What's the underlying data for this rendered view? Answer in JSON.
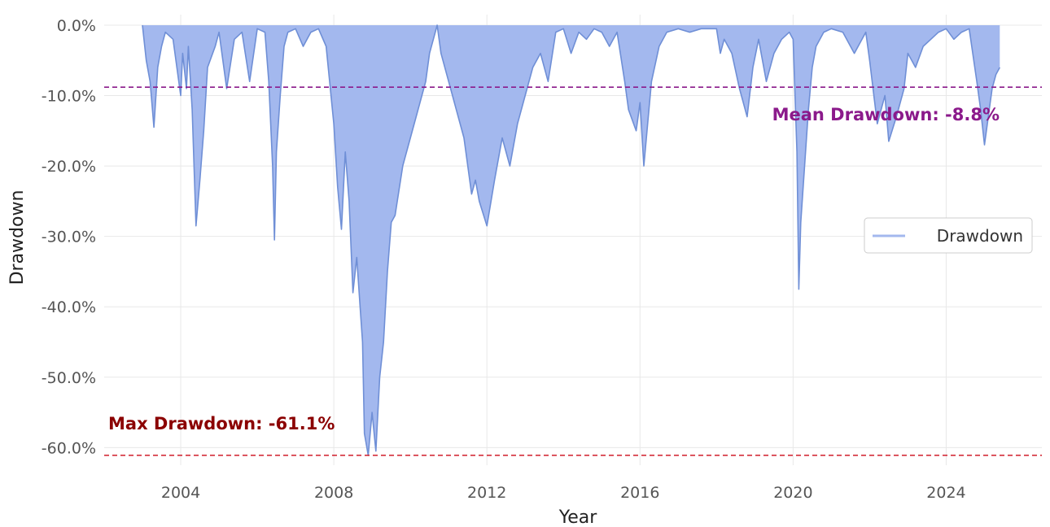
{
  "chart_data": {
    "type": "area",
    "title": "",
    "xlabel": "Year",
    "ylabel": "Drawdown",
    "xlim": [
      2002.0,
      2026.5
    ],
    "ylim": [
      -62.5,
      1.5
    ],
    "x_ticks": [
      2004,
      2008,
      2012,
      2016,
      2020,
      2024
    ],
    "x_tick_labels": [
      "2004",
      "2008",
      "2012",
      "2016",
      "2020",
      "2024"
    ],
    "y_ticks": [
      0,
      -10,
      -20,
      -30,
      -40,
      -50,
      -60
    ],
    "y_tick_labels": [
      "0.0%",
      "-10.0%",
      "-20.0%",
      "-30.0%",
      "-40.0%",
      "-50.0%",
      "-60.0%"
    ],
    "grid": true,
    "legend": {
      "position": "right",
      "entries": [
        "Drawdown"
      ]
    },
    "series": [
      {
        "name": "Drawdown",
        "color": "#6f8fd6",
        "fill": "#a3b8ee",
        "x": [
          2003.0,
          2003.1,
          2003.2,
          2003.3,
          2003.4,
          2003.5,
          2003.6,
          2003.8,
          2004.0,
          2004.05,
          2004.15,
          2004.2,
          2004.3,
          2004.4,
          2004.5,
          2004.6,
          2004.7,
          2004.9,
          2005.0,
          2005.2,
          2005.4,
          2005.6,
          2005.8,
          2006.0,
          2006.2,
          2006.3,
          2006.4,
          2006.45,
          2006.5,
          2006.6,
          2006.7,
          2006.8,
          2007.0,
          2007.2,
          2007.4,
          2007.6,
          2007.8,
          2008.0,
          2008.1,
          2008.2,
          2008.3,
          2008.4,
          2008.5,
          2008.6,
          2008.7,
          2008.75,
          2008.8,
          2008.9,
          2009.0,
          2009.1,
          2009.2,
          2009.3,
          2009.4,
          2009.5,
          2009.6,
          2009.8,
          2010.0,
          2010.2,
          2010.4,
          2010.5,
          2010.6,
          2010.7,
          2010.8,
          2011.0,
          2011.2,
          2011.4,
          2011.6,
          2011.7,
          2011.8,
          2012.0,
          2012.2,
          2012.4,
          2012.6,
          2012.8,
          2013.0,
          2013.2,
          2013.4,
          2013.6,
          2013.8,
          2014.0,
          2014.2,
          2014.4,
          2014.6,
          2014.8,
          2015.0,
          2015.2,
          2015.4,
          2015.6,
          2015.7,
          2015.9,
          2016.0,
          2016.1,
          2016.3,
          2016.5,
          2016.7,
          2017.0,
          2017.3,
          2017.6,
          2018.0,
          2018.1,
          2018.2,
          2018.4,
          2018.6,
          2018.8,
          2018.95,
          2019.1,
          2019.3,
          2019.5,
          2019.7,
          2019.9,
          2020.0,
          2020.1,
          2020.15,
          2020.2,
          2020.3,
          2020.4,
          2020.5,
          2020.6,
          2020.8,
          2021.0,
          2021.3,
          2021.6,
          2021.9,
          2022.0,
          2022.2,
          2022.4,
          2022.5,
          2022.7,
          2022.9,
          2023.0,
          2023.2,
          2023.4,
          2023.6,
          2023.8,
          2024.0,
          2024.2,
          2024.4,
          2024.6,
          2024.8,
          2024.9,
          2025.0,
          2025.1,
          2025.2,
          2025.3,
          2025.4
        ],
        "values": [
          0.0,
          -5.0,
          -8.0,
          -14.5,
          -6.0,
          -3.0,
          -1.0,
          -2.0,
          -10.0,
          -4.0,
          -9.0,
          -3.0,
          -12.0,
          -28.5,
          -22.0,
          -15.0,
          -6.0,
          -3.0,
          -1.0,
          -9.0,
          -2.0,
          -1.0,
          -8.0,
          -0.5,
          -1.0,
          -8.0,
          -20.0,
          -30.5,
          -18.0,
          -10.0,
          -3.0,
          -1.0,
          -0.5,
          -3.0,
          -1.0,
          -0.5,
          -3.0,
          -14.0,
          -23.0,
          -29.0,
          -18.0,
          -25.0,
          -38.0,
          -33.0,
          -41.0,
          -45.0,
          -58.0,
          -61.1,
          -55.0,
          -60.5,
          -50.0,
          -45.0,
          -35.0,
          -28.0,
          -27.0,
          -20.0,
          -16.0,
          -12.0,
          -8.0,
          -4.0,
          -2.0,
          0.0,
          -4.0,
          -8.0,
          -12.0,
          -16.0,
          -24.0,
          -22.0,
          -25.0,
          -28.5,
          -22.0,
          -16.0,
          -20.0,
          -14.0,
          -10.0,
          -6.0,
          -4.0,
          -8.0,
          -1.0,
          -0.5,
          -4.0,
          -1.0,
          -2.0,
          -0.5,
          -1.0,
          -3.0,
          -1.0,
          -8.0,
          -12.0,
          -15.0,
          -11.0,
          -20.0,
          -8.0,
          -3.0,
          -1.0,
          -0.5,
          -1.0,
          -0.5,
          -0.5,
          -4.0,
          -2.0,
          -4.0,
          -9.0,
          -13.0,
          -6.0,
          -2.0,
          -8.0,
          -4.0,
          -2.0,
          -1.0,
          -2.0,
          -18.0,
          -37.5,
          -28.0,
          -20.0,
          -12.0,
          -6.0,
          -3.0,
          -1.0,
          -0.5,
          -1.0,
          -4.0,
          -1.0,
          -5.0,
          -14.0,
          -10.0,
          -16.5,
          -13.0,
          -9.0,
          -4.0,
          -6.0,
          -3.0,
          -2.0,
          -1.0,
          -0.5,
          -2.0,
          -1.0,
          -0.5,
          -8.0,
          -12.0,
          -17.0,
          -13.0,
          -9.0,
          -7.0,
          -6.0
        ]
      }
    ],
    "reference_lines": [
      {
        "name": "mean",
        "y": -8.8,
        "color": "#8b1a8b",
        "label": "Mean Drawdown: -8.8%"
      },
      {
        "name": "max",
        "y": -61.1,
        "color": "#d01c2a",
        "label": "Max Drawdown: -61.1%",
        "label_color": "#8b0000"
      }
    ]
  }
}
